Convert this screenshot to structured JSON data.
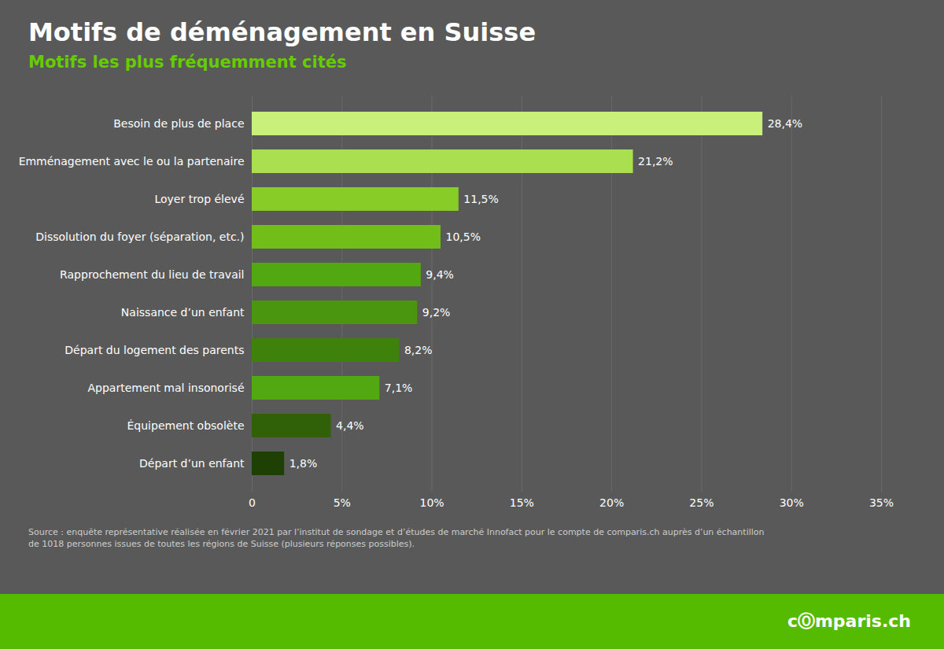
{
  "chart_data": {
    "type": "bar",
    "orientation": "horizontal",
    "title": "Motifs de déménagement en Suisse",
    "subtitle": "Motifs les plus fréquemment cités",
    "categories": [
      "Besoin de plus de place",
      "Emménagement avec le ou la partenaire",
      "Loyer trop élevé",
      "Dissolution du foyer (séparation, etc.)",
      "Rapprochement du lieu de travail",
      "Naissance d’un enfant",
      "Départ du logement des parents",
      "Appartement mal insonorisé",
      "Équipement obsolète",
      "Départ d’un enfant"
    ],
    "values": [
      28.4,
      21.2,
      11.5,
      10.5,
      9.4,
      9.2,
      8.2,
      7.1,
      4.4,
      1.8
    ],
    "value_labels": [
      "28,4%",
      "21,2%",
      "11,5%",
      "10,5%",
      "9,4%",
      "9,2%",
      "8,2%",
      "7,1%",
      "4,4%",
      "1,8%"
    ],
    "data_labels": true,
    "colors": [
      "#c8f07a",
      "#aadf50",
      "#88cc28",
      "#72be18",
      "#52a810",
      "#4a960e",
      "#3e820c",
      "#52a810",
      "#306008",
      "#1e4004"
    ],
    "xlim": [
      0,
      35
    ],
    "xticks": [
      0,
      {
        "value": 5,
        "label": "5%"
      },
      {
        "value": 10,
        "label": "10%"
      },
      {
        "value": 15,
        "label": "15%"
      },
      {
        "value": 20,
        "label": "20%"
      },
      {
        "value": 25,
        "label": "25%"
      },
      {
        "value": 30,
        "label": "30%"
      },
      {
        "value": 35,
        "label": "35%"
      }
    ],
    "grid": true,
    "caption": "Source : enquête représentative réalisée en février 2021 par l’institut de sondage et d’études de marché Innofact pour le compte de comparis.ch auprès d’un échantillon\nde 1018 personnes issues de toutes les régions de Suisse (plusieurs réponses possibles).",
    "annotations": [
      "cⓄmparis.ch"
    ]
  }
}
